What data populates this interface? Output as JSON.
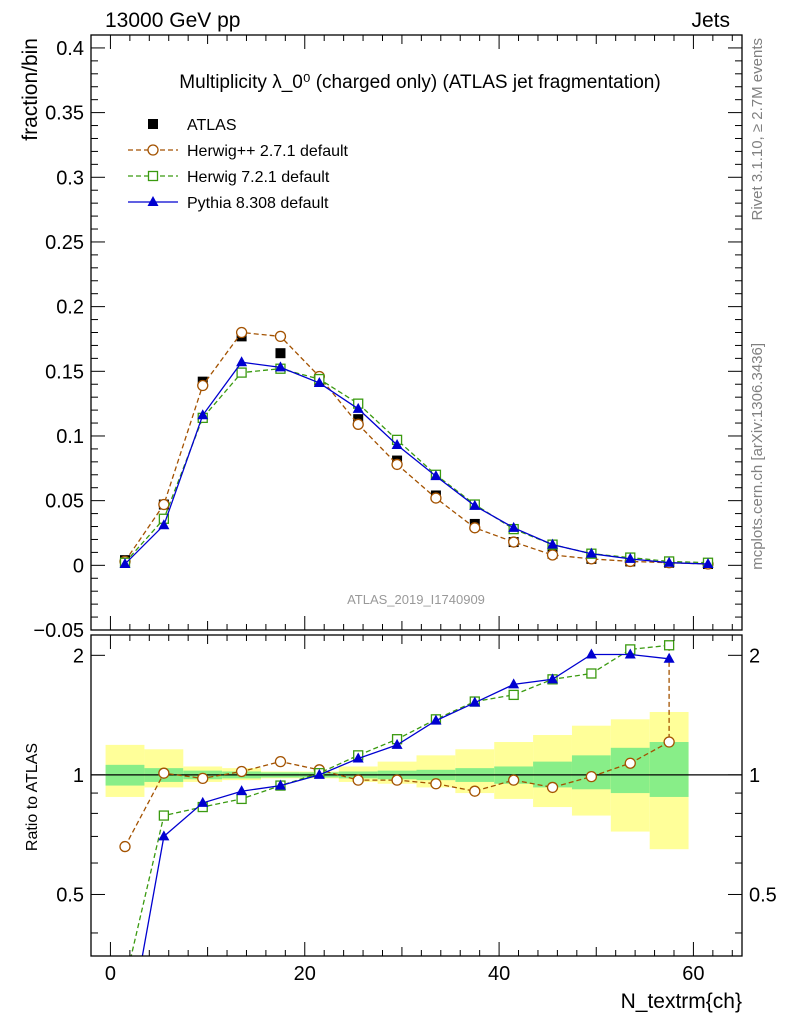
{
  "header": {
    "left": "13000 GeV pp",
    "right": "Jets"
  },
  "side": {
    "top": "Rivet 3.1.10, ≥ 2.7M events",
    "bottom": "mcplots.cern.ch [arXiv:1306.3436]"
  },
  "watermark": "ATLAS_2019_I1740909",
  "chart_data": [
    {
      "type": "line",
      "title": "Multiplicity λ_0⁰ (charged only) (ATLAS jet fragmentation)",
      "ylabel": "fraction/bin",
      "xlabel": "",
      "xlim": [
        -2,
        65
      ],
      "ylim": [
        -0.05,
        0.41
      ],
      "x_ticks": [
        "0",
        "20",
        "40",
        "60"
      ],
      "y_ticks": [
        "−0.05",
        "0",
        "0.05",
        "0.1",
        "0.15",
        "0.2",
        "0.25",
        "0.3",
        "0.35",
        "0.4"
      ],
      "x": [
        1.5,
        5.5,
        9.5,
        13.5,
        17.5,
        21.5,
        25.5,
        29.5,
        33.5,
        37.5,
        41.5,
        45.5,
        49.5,
        53.5,
        57.5,
        61.5
      ],
      "series": [
        {
          "name": "ATLAS",
          "color": "#000000",
          "marker": "filled-square",
          "line": "none",
          "values": [
            0.004,
            0.047,
            0.142,
            0.177,
            0.164,
            0.142,
            0.113,
            0.081,
            0.054,
            0.032,
            0.018,
            0.009,
            0.005,
            0.003,
            0.002,
            0.001
          ]
        },
        {
          "name": "Herwig++ 2.7.1 default",
          "color": "#a35200",
          "marker": "open-circle",
          "line": "dashed",
          "values": [
            0.003,
            0.047,
            0.139,
            0.18,
            0.177,
            0.146,
            0.109,
            0.078,
            0.052,
            0.029,
            0.018,
            0.008,
            0.005,
            0.003,
            0.002,
            0.001
          ]
        },
        {
          "name": "Herwig 7.2.1 default",
          "color": "#3a9a10",
          "marker": "open-square",
          "line": "dashed",
          "values": [
            0.002,
            0.036,
            0.114,
            0.149,
            0.152,
            0.144,
            0.125,
            0.097,
            0.07,
            0.047,
            0.028,
            0.016,
            0.009,
            0.006,
            0.003,
            0.002
          ]
        },
        {
          "name": "Pythia 8.308 default",
          "color": "#0000d0",
          "marker": "filled-triangle",
          "line": "solid",
          "values": [
            0.001,
            0.031,
            0.116,
            0.157,
            0.153,
            0.141,
            0.121,
            0.093,
            0.069,
            0.046,
            0.029,
            0.016,
            0.009,
            0.005,
            0.002,
            0.001
          ]
        }
      ]
    },
    {
      "type": "line",
      "title": "",
      "ylabel": "Ratio to ATLAS",
      "xlabel": "N_textrm{ch}",
      "xlim": [
        -2,
        65
      ],
      "ylim": [
        0.35,
        2.25
      ],
      "x_ticks": [
        "0",
        "20",
        "40",
        "60"
      ],
      "y_ticks": [
        "0.5",
        "1",
        "2"
      ],
      "reference": 1,
      "bands": {
        "bins": [
          [
            -0.5,
            3.5
          ],
          [
            3.5,
            7.5
          ],
          [
            7.5,
            11.5
          ],
          [
            11.5,
            15.5
          ],
          [
            15.5,
            19.5
          ],
          [
            19.5,
            23.5
          ],
          [
            23.5,
            27.5
          ],
          [
            27.5,
            31.5
          ],
          [
            31.5,
            35.5
          ],
          [
            35.5,
            39.5
          ],
          [
            39.5,
            43.5
          ],
          [
            43.5,
            47.5
          ],
          [
            47.5,
            51.5
          ],
          [
            51.5,
            55.5
          ],
          [
            55.5,
            59.5
          ]
        ],
        "inner": [
          [
            0.94,
            1.06
          ],
          [
            0.96,
            1.04
          ],
          [
            0.975,
            1.025
          ],
          [
            0.98,
            1.02
          ],
          [
            0.985,
            1.015
          ],
          [
            0.985,
            1.015
          ],
          [
            0.98,
            1.02
          ],
          [
            0.975,
            1.025
          ],
          [
            0.97,
            1.03
          ],
          [
            0.96,
            1.04
          ],
          [
            0.95,
            1.05
          ],
          [
            0.93,
            1.08
          ],
          [
            0.92,
            1.12
          ],
          [
            0.9,
            1.17
          ],
          [
            0.88,
            1.21
          ]
        ],
        "outer": [
          [
            0.88,
            1.19
          ],
          [
            0.93,
            1.16
          ],
          [
            0.96,
            1.05
          ],
          [
            0.97,
            1.04
          ],
          [
            0.98,
            1.02
          ],
          [
            0.98,
            1.02
          ],
          [
            0.96,
            1.05
          ],
          [
            0.95,
            1.08
          ],
          [
            0.93,
            1.12
          ],
          [
            0.9,
            1.16
          ],
          [
            0.87,
            1.21
          ],
          [
            0.83,
            1.26
          ],
          [
            0.79,
            1.33
          ],
          [
            0.72,
            1.38
          ],
          [
            0.65,
            1.44
          ]
        ],
        "inner_color": "#88ee88",
        "outer_color": "#ffff99"
      },
      "x": [
        1.5,
        5.5,
        9.5,
        13.5,
        17.5,
        21.5,
        25.5,
        29.5,
        33.5,
        37.5,
        41.5,
        45.5,
        49.5,
        53.5,
        57.5
      ],
      "series": [
        {
          "name": "Herwig++ 2.7.1 default",
          "color": "#a35200",
          "marker": "open-circle",
          "line": "dashed",
          "values": [
            0.66,
            1.01,
            0.98,
            1.02,
            1.08,
            1.03,
            0.97,
            0.97,
            0.95,
            0.91,
            0.97,
            0.93,
            0.99,
            1.07,
            1.21
          ],
          "tail_to": 2.12
        },
        {
          "name": "Herwig 7.2.1 default",
          "color": "#3a9a10",
          "marker": "open-square",
          "line": "dashed",
          "values": [
            0.3,
            0.79,
            0.83,
            0.87,
            0.94,
            1.01,
            1.12,
            1.23,
            1.38,
            1.53,
            1.59,
            1.74,
            1.8,
            2.07,
            2.12
          ]
        },
        {
          "name": "Pythia 8.308 default",
          "color": "#0000d0",
          "marker": "filled-triangle",
          "line": "solid",
          "values": [
            0.2,
            0.7,
            0.85,
            0.91,
            0.94,
            1.0,
            1.1,
            1.19,
            1.37,
            1.52,
            1.69,
            1.74,
            2.01,
            2.01,
            1.96
          ]
        }
      ]
    }
  ]
}
